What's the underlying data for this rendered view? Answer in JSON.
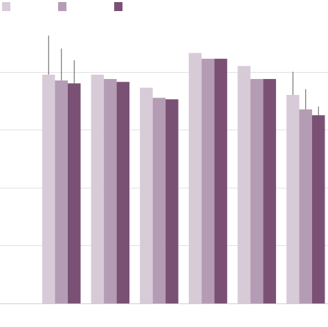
{
  "chart_data": {
    "type": "bar",
    "categories": [
      "",
      "",
      "",
      "",
      "",
      ""
    ],
    "series": [
      {
        "color": "#d8cbd8",
        "values": [
          0.79,
          0.79,
          0.745,
          0.865,
          0.82,
          0.72
        ]
      },
      {
        "color": "#b49cb4",
        "values": [
          0.77,
          0.775,
          0.71,
          0.845,
          0.775,
          0.67
        ]
      },
      {
        "color": "#7a5175",
        "values": [
          0.76,
          0.765,
          0.705,
          0.845,
          0.775,
          0.65
        ]
      }
    ],
    "error_bars": [
      {
        "series": 0,
        "category": 0,
        "upper": 0.925
      },
      {
        "series": 1,
        "category": 0,
        "upper": 0.88
      },
      {
        "series": 2,
        "category": 0,
        "upper": 0.84
      },
      {
        "series": 0,
        "category": 5,
        "upper": 0.8
      },
      {
        "series": 1,
        "category": 5,
        "upper": 0.74
      },
      {
        "series": 2,
        "category": 5,
        "upper": 0.68
      }
    ],
    "ylim": [
      0,
      1
    ],
    "yticks": [
      0,
      0.2,
      0.4,
      0.6,
      0.8
    ],
    "grid": true,
    "legend": "top-left",
    "legend_labels_visible": false
  }
}
